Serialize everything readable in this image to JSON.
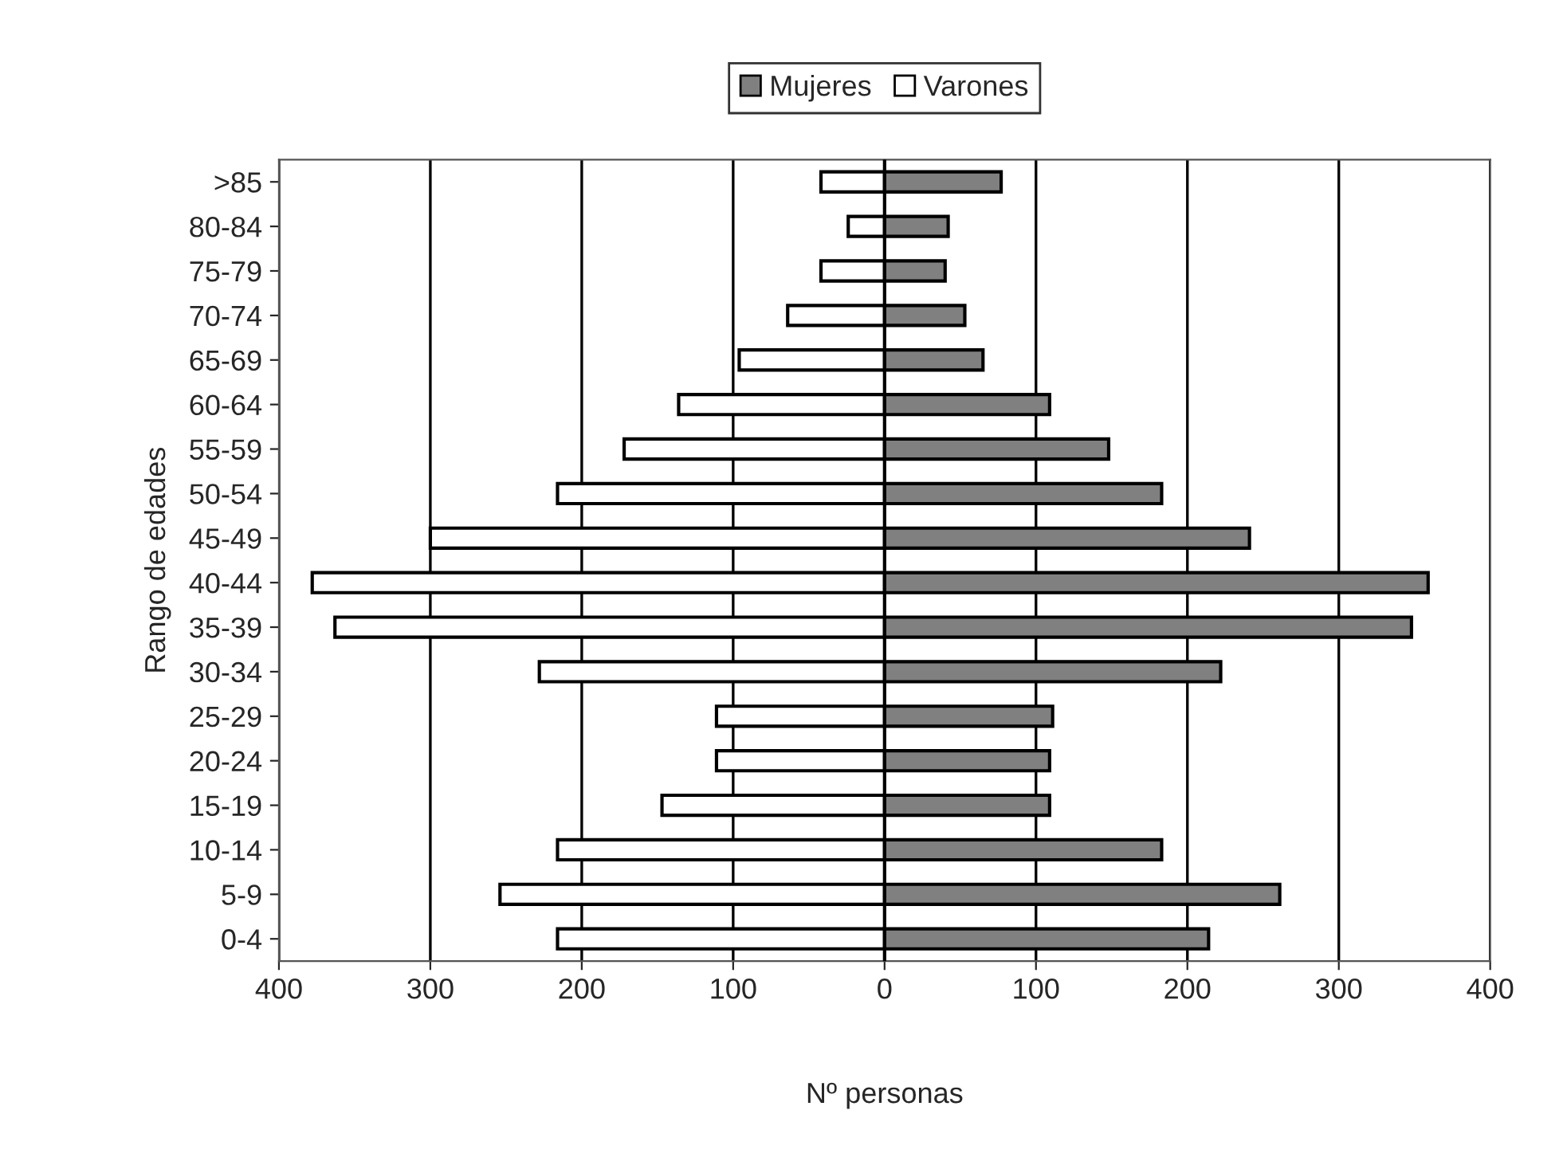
{
  "chart_data": {
    "type": "bar",
    "orientation": "horizontal",
    "stacked": true,
    "xlabel": "Nº personas",
    "ylabel": "Rango de edades",
    "categories": [
      ">85",
      "80-84",
      "75-79",
      "70-74",
      "65-69",
      "60-64",
      "55-59",
      "50-54",
      "45-49",
      "40-44",
      "35-39",
      "30-34",
      "25-29",
      "20-24",
      "15-19",
      "10-14",
      "5-9",
      "0-4"
    ],
    "series": [
      {
        "name": "Mujeres",
        "color": "#808080",
        "values": [
          77,
          42,
          40,
          53,
          65,
          109,
          148,
          183,
          241,
          359,
          348,
          222,
          111,
          109,
          109,
          183,
          261,
          214
        ]
      },
      {
        "name": "Varones",
        "color": "#ffffff",
        "values": [
          -42,
          -24,
          -42,
          -64,
          -96,
          -136,
          -172,
          -216,
          -300,
          -378,
          -363,
          -228,
          -111,
          -111,
          -147,
          -216,
          -254,
          -216
        ]
      }
    ],
    "xlim": [
      -400,
      400
    ],
    "xticks": [
      {
        "value": -400,
        "label": "400"
      },
      {
        "value": -300,
        "label": "300"
      },
      {
        "value": -200,
        "label": "200"
      },
      {
        "value": -100,
        "label": "100"
      },
      0,
      100,
      200,
      300,
      400
    ],
    "grid": "x",
    "legend": "top"
  }
}
